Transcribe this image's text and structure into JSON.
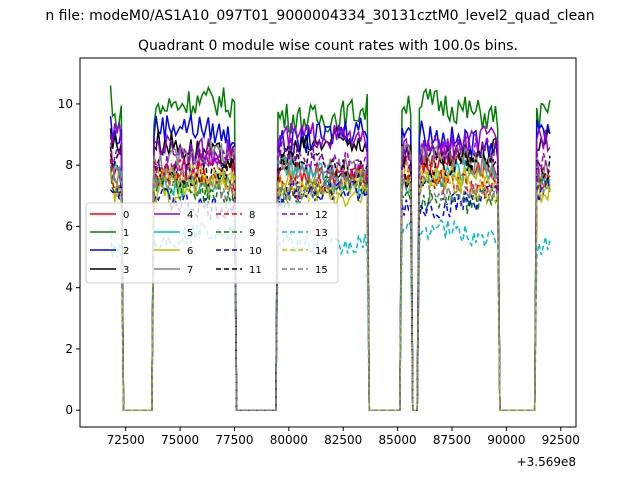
{
  "chart_data": {
    "type": "line",
    "suptitle": "n file: modeM0/AS1A10_097T01_9000004334_30131cztM0_level2_quad_clean",
    "title": "Quadrant 0 module wise count rates with 100.0s bins.",
    "xlabel": "",
    "ylabel": "",
    "x_offset_label": "+3.569e8",
    "xlim": [
      70400,
      93200
    ],
    "ylim": [
      -0.55,
      11.5
    ],
    "x_ticks": [
      72500,
      75000,
      77500,
      80000,
      82500,
      85000,
      87500,
      90000,
      92500
    ],
    "x_tick_labels": [
      "72500",
      "75000",
      "77500",
      "80000",
      "82500",
      "85000",
      "87500",
      "90000",
      "92500"
    ],
    "y_ticks": [
      0,
      2,
      4,
      6,
      8,
      10
    ],
    "y_tick_labels": [
      "0",
      "2",
      "4",
      "6",
      "8",
      "10"
    ],
    "grid": false,
    "legend_placement": "center-left",
    "legend_columns": 4,
    "bin_width_s": 100,
    "active_intervals": [
      [
        71800,
        72300
      ],
      [
        73800,
        77500
      ],
      [
        79500,
        83600
      ],
      [
        85200,
        85600
      ],
      [
        86000,
        86700
      ],
      [
        86800,
        89600
      ],
      [
        91400,
        92000
      ]
    ],
    "series": [
      {
        "name": "0",
        "color": "#ff0000",
        "dash": "solid",
        "level": 7.9,
        "start": 8.4,
        "amp": 0.45
      },
      {
        "name": "1",
        "color": "#008000",
        "dash": "solid",
        "level": 9.8,
        "start": 10.6,
        "amp": 0.5
      },
      {
        "name": "2",
        "color": "#0000ff",
        "dash": "solid",
        "level": 9.0,
        "start": 9.6,
        "amp": 0.45
      },
      {
        "name": "3",
        "color": "#000000",
        "dash": "solid",
        "level": 8.5,
        "start": 9.2,
        "amp": 0.45
      },
      {
        "name": "4",
        "color": "#9400d3",
        "dash": "solid",
        "level": 8.7,
        "start": 9.0,
        "amp": 0.45
      },
      {
        "name": "5",
        "color": "#00bfbf",
        "dash": "solid",
        "level": 7.6,
        "start": 8.0,
        "amp": 0.4
      },
      {
        "name": "6",
        "color": "#bfbf00",
        "dash": "solid",
        "level": 7.3,
        "start": 7.8,
        "amp": 0.4
      },
      {
        "name": "7",
        "color": "#808080",
        "dash": "solid",
        "level": 8.1,
        "start": 8.6,
        "amp": 0.45
      },
      {
        "name": "8",
        "color": "#ff0000",
        "dash": "dashed",
        "level": 7.5,
        "start": 8.2,
        "amp": 0.45
      },
      {
        "name": "9",
        "color": "#008000",
        "dash": "dashed",
        "level": 7.1,
        "start": 7.8,
        "amp": 0.4
      },
      {
        "name": "10",
        "color": "#0000ff",
        "dash": "dashed",
        "level": 6.9,
        "start": 7.2,
        "amp": 0.4
      },
      {
        "name": "11",
        "color": "#000000",
        "dash": "dashed",
        "level": 7.9,
        "start": 8.6,
        "amp": 0.45
      },
      {
        "name": "12",
        "color": "#9400d3",
        "dash": "dashed",
        "level": 8.3,
        "start": 9.0,
        "amp": 0.45
      },
      {
        "name": "13",
        "color": "#00bfbf",
        "dash": "dashed",
        "level": 5.6,
        "start": 6.0,
        "amp": 0.35
      },
      {
        "name": "14",
        "color": "#bfbf00",
        "dash": "dashed",
        "level": 7.4,
        "start": 7.8,
        "amp": 0.4
      },
      {
        "name": "15",
        "color": "#808080",
        "dash": "dashed",
        "level": 7.3,
        "start": 7.6,
        "amp": 0.4
      }
    ]
  }
}
